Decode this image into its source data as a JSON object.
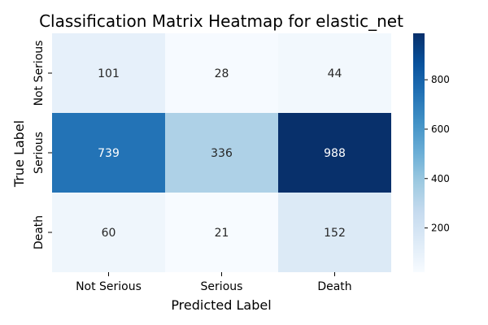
{
  "chart_data": {
    "type": "heatmap",
    "title": "Classification Matrix Heatmap for elastic_net",
    "xlabel": "Predicted Label",
    "ylabel": "True Label",
    "x_categories": [
      "Not Serious",
      "Serious",
      "Death"
    ],
    "y_categories": [
      "Not Serious",
      "Serious",
      "Death"
    ],
    "values": [
      [
        101,
        28,
        44
      ],
      [
        739,
        336,
        988
      ],
      [
        60,
        21,
        152
      ]
    ],
    "colormap": "Blues",
    "colorbar": {
      "min": 21,
      "max": 988,
      "ticks": [
        200,
        400,
        600,
        800
      ]
    },
    "grid": false,
    "legend": "colorbar-right"
  }
}
